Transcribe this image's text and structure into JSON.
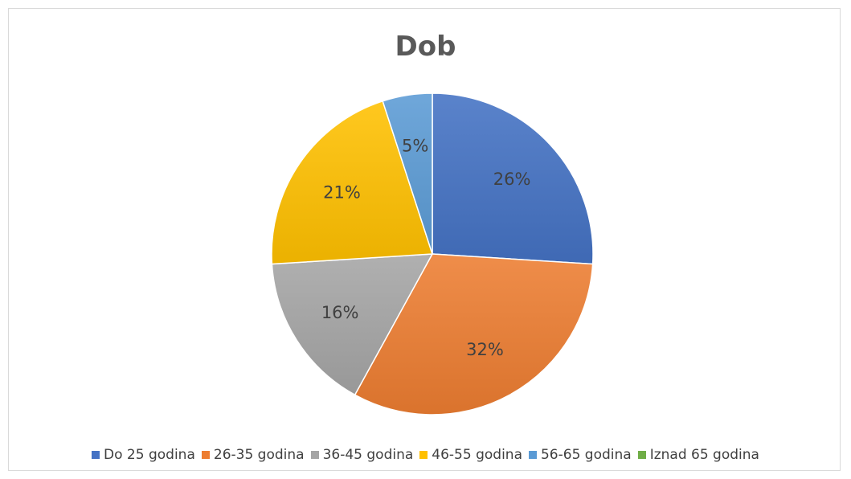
{
  "chart_data": {
    "type": "pie",
    "title": "Dob",
    "categories": [
      "Do 25 godina",
      "26-35 godina",
      "36-45 godina",
      "46-55 godina",
      "56-65 godina",
      "Iznad 65 godina"
    ],
    "values": [
      26,
      32,
      16,
      21,
      5,
      0
    ],
    "value_labels": [
      "26%",
      "32%",
      "16%",
      "21%",
      "5%",
      ""
    ],
    "colors": [
      "#4472c4",
      "#ed7d31",
      "#a5a5a5",
      "#ffc000",
      "#5b9bd5",
      "#70ad47"
    ],
    "legend_position": "bottom"
  }
}
